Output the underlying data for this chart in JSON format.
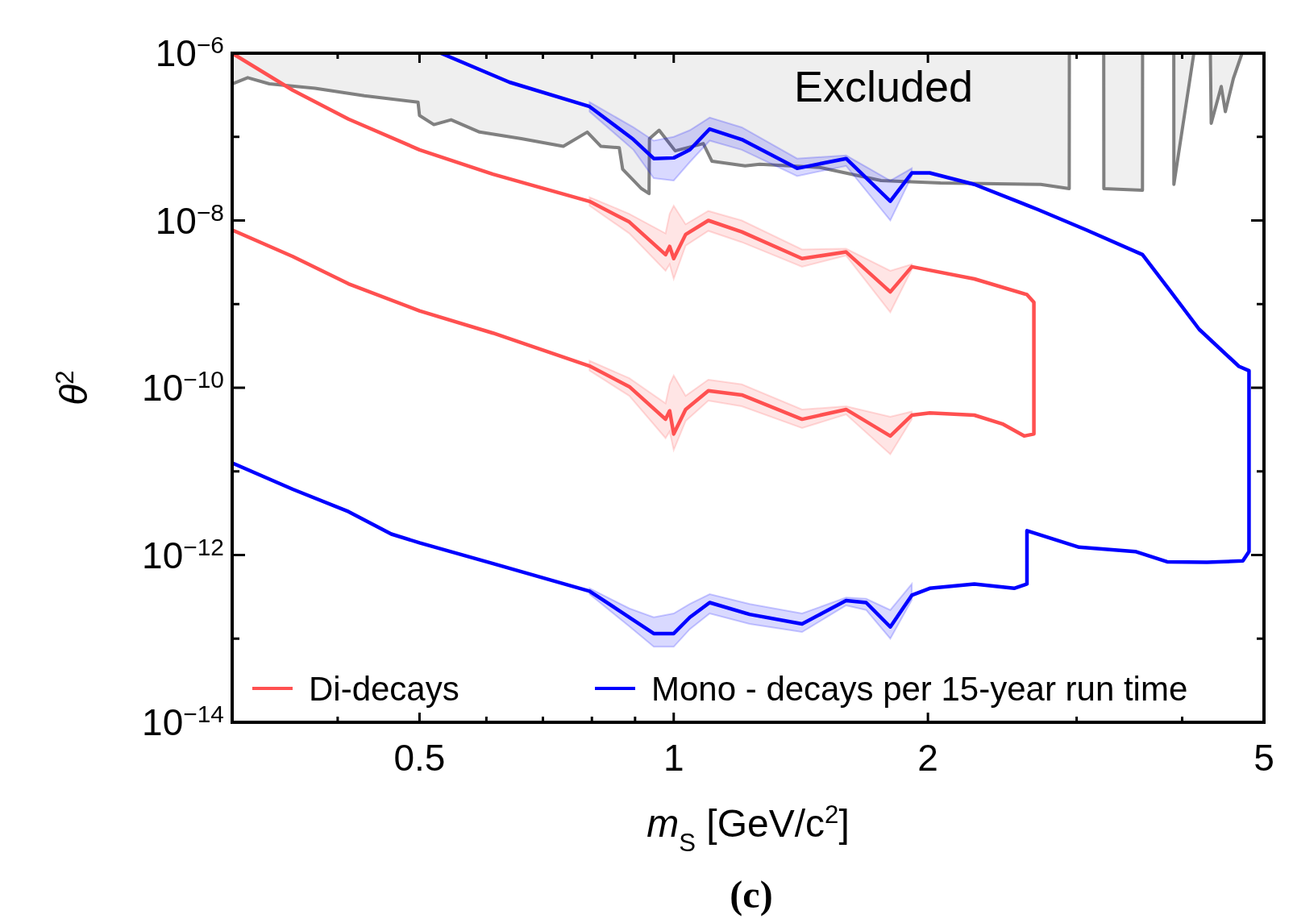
{
  "chart_data": {
    "type": "line",
    "xlabel": "m$_{S}$ [GeV/c$^{2}$]",
    "ylabel": "θ$^{2}$",
    "log": "xy",
    "grid": false,
    "legend": "bottom",
    "xlim": [
      0.3,
      5
    ],
    "ylim": [
      1e-14,
      1e-06
    ],
    "xticks": [
      {
        "value": 0.3,
        "label": null
      },
      {
        "value": 0.4,
        "label": null
      },
      {
        "value": 0.5,
        "label": "0.5"
      },
      {
        "value": 0.6,
        "label": null
      },
      {
        "value": 0.7,
        "label": null
      },
      {
        "value": 0.8,
        "label": null
      },
      {
        "value": 0.9,
        "label": null
      },
      {
        "value": 1,
        "label": "1"
      },
      {
        "value": 2,
        "label": "2"
      },
      {
        "value": 3,
        "label": null
      },
      {
        "value": 4,
        "label": null
      },
      {
        "value": 5,
        "label": "5"
      }
    ],
    "yticks": [
      {
        "value": 1e-14,
        "label": "10$^{−14}$"
      },
      {
        "value": 1e-13,
        "label": null
      },
      {
        "value": 1e-12,
        "label": "10$^{−12}$"
      },
      {
        "value": 1e-11,
        "label": null
      },
      {
        "value": 1e-10,
        "label": "10$^{−10}$"
      },
      {
        "value": 1e-09,
        "label": null
      },
      {
        "value": 1e-08,
        "label": "10$^{−8}$"
      },
      {
        "value": 1e-07,
        "label": null
      },
      {
        "value": 1e-06,
        "label": "10$^{−6}$"
      }
    ],
    "annotations": [
      "Excluded",
      "(c)"
    ],
    "series": [
      {
        "color": "#808080",
        "x": [
          0.3,
          0.313,
          0.332,
          0.376,
          0.43,
          0.498,
          0.5,
          0.52,
          0.545,
          0.589,
          0.66,
          0.74,
          0.79,
          0.82,
          0.862,
          0.87,
          0.916,
          0.935,
          0.936,
          0.961,
          1.004,
          1.084,
          1.11,
          1.215,
          1.264,
          1.49,
          1.76,
          2.07,
          2.72,
          2.94,
          2.941,
          3.23,
          3.231,
          3.59,
          3.591,
          3.91,
          3.911,
          4.13,
          4.32,
          4.33,
          4.45,
          4.5,
          4.6,
          4.71
        ],
        "values": [
          4.3e-07,
          5.1e-07,
          4.3e-07,
          3.8e-07,
          3.1e-07,
          2.6e-07,
          1.8e-07,
          1.4e-07,
          1.6e-07,
          1.14e-07,
          9.5e-08,
          7.7e-08,
          1.14e-07,
          7.7e-08,
          7.4e-08,
          4.1e-08,
          2.4e-08,
          2.1e-08,
          9.5e-08,
          1.2e-07,
          6.8e-08,
          8.3e-08,
          5.1e-08,
          4.5e-08,
          4.7e-08,
          4.3e-08,
          3e-08,
          2.8e-08,
          2.7e-08,
          2.4e-08,
          1e-06,
          1e-06,
          2.4e-08,
          2.3e-08,
          1e-06,
          1e-06,
          2.7e-08,
          1e-06,
          1e-06,
          1.45e-07,
          4e-07,
          2e-07,
          5e-07,
          1e-06
        ]
      },
      {
        "name": "Di-decays",
        "color": "#ff5050",
        "x": [
          0.3,
          0.354,
          0.412,
          0.5,
          0.611,
          0.795,
          0.886,
          0.978,
          0.989,
          1.0,
          1.033,
          1.099,
          1.204,
          1.419,
          1.6,
          1.805,
          1.914,
          2.27,
          2.62,
          2.67,
          2.67,
          2.6,
          2.45,
          2.27,
          2.01,
          1.914,
          1.805,
          1.6,
          1.419,
          1.204,
          1.099,
          1.033,
          1.0,
          0.989,
          0.978,
          0.886,
          0.795,
          0.611,
          0.5,
          0.412,
          0.354,
          0.3
        ],
        "values": [
          1e-06,
          3.6e-07,
          1.63e-07,
          7e-08,
          3.57e-08,
          1.69e-08,
          9.6e-09,
          3.9e-09,
          4.9e-09,
          3.5e-09,
          6.8e-09,
          1e-08,
          7.3e-09,
          3.5e-09,
          4.2e-09,
          1.4e-09,
          2.8e-09,
          2e-09,
          1.3e-09,
          1.05e-09,
          2.8e-11,
          2.65e-11,
          3.7e-11,
          4.7e-11,
          5e-11,
          4.7e-11,
          2.65e-11,
          5.5e-11,
          4.2e-11,
          8.2e-11,
          9.2e-11,
          5.5e-11,
          2.8e-11,
          5.3e-11,
          4.2e-11,
          1.03e-10,
          1.82e-10,
          4.5e-10,
          8.3e-10,
          1.75e-09,
          3.7e-09,
          7.7e-09
        ],
        "lower": [
          null,
          null,
          null,
          null,
          null,
          1.5e-08,
          7e-09,
          2.5e-09,
          3e-09,
          2e-09,
          5e-09,
          7.5e-09,
          5.5e-09,
          2.8e-09,
          3.8e-09,
          8e-10,
          2.6e-09,
          null,
          null,
          null,
          null,
          null,
          null,
          null,
          null,
          4.2e-11,
          1.6e-11,
          4.8e-11,
          3.3e-11,
          6e-11,
          7e-11,
          4e-11,
          1.8e-11,
          3e-11,
          2.5e-11,
          8e-11,
          1.6e-10,
          null,
          null,
          null,
          null,
          null
        ],
        "upper": [
          null,
          null,
          null,
          null,
          null,
          1.9e-08,
          1.2e-08,
          7e-09,
          1.2e-08,
          1.5e-08,
          9e-09,
          1.3e-08,
          1e-08,
          4.5e-09,
          4.6e-09,
          2.5e-09,
          3e-09,
          null,
          null,
          null,
          null,
          null,
          null,
          null,
          null,
          5.2e-11,
          4.5e-11,
          6e-11,
          5.5e-11,
          1.1e-10,
          1.25e-10,
          8e-11,
          1.4e-10,
          1.1e-10,
          6.5e-11,
          1.3e-10,
          2.1e-10,
          null,
          null,
          null,
          null,
          null
        ]
      },
      {
        "name": "Mono - decays per 15-year run time",
        "color": "#0000ff",
        "x": [
          0.53,
          0.639,
          0.795,
          0.896,
          0.947,
          1.0,
          1.045,
          1.103,
          1.204,
          1.4,
          1.6,
          1.805,
          1.914,
          2.01,
          2.27,
          2.7,
          3.08,
          3.59,
          3.88,
          4.19,
          4.67,
          4.8,
          4.8,
          4.72,
          4.28,
          3.84,
          3.52,
          3.02,
          2.62,
          2.62,
          2.53,
          2.27,
          2.01,
          1.914,
          1.805,
          1.69,
          1.6,
          1.419,
          1.23,
          1.103,
          1.045,
          1.0,
          0.947,
          0.886,
          0.795,
          0.611,
          0.5,
          0.463,
          0.412,
          0.354,
          0.3
        ],
        "values": [
          1e-06,
          4.5e-07,
          2.3e-07,
          9.3e-08,
          5.5e-08,
          5.6e-08,
          7e-08,
          1.24e-07,
          9.3e-08,
          4.2e-08,
          5.5e-08,
          1.7e-08,
          3.7e-08,
          3.7e-08,
          2.7e-08,
          1.35e-08,
          7.7e-09,
          3.9e-09,
          1.4e-09,
          5e-10,
          1.8e-10,
          1.6e-10,
          1.1e-12,
          8.5e-13,
          8.2e-13,
          8.3e-13,
          1.1e-12,
          1.24e-12,
          1.95e-12,
          4.5e-13,
          4e-13,
          4.5e-13,
          4e-13,
          3.3e-13,
          1.38e-13,
          2.7e-13,
          2.85e-13,
          1.5e-13,
          1.95e-13,
          2.7e-13,
          1.8e-13,
          1.15e-13,
          1.15e-13,
          1.8e-13,
          3.7e-13,
          7.9e-13,
          1.4e-12,
          1.78e-12,
          3.3e-12,
          6.1e-12,
          1.26e-11
        ],
        "lower": [
          null,
          null,
          2e-07,
          7e-08,
          3.2e-08,
          3e-08,
          5e-08,
          9e-08,
          7e-08,
          3.4e-08,
          4.5e-08,
          1e-08,
          3.4e-08,
          null,
          null,
          null,
          null,
          null,
          null,
          null,
          null,
          null,
          null,
          null,
          null,
          null,
          null,
          null,
          null,
          null,
          null,
          null,
          null,
          2.9e-13,
          1e-13,
          2.2e-13,
          2.5e-13,
          1.2e-13,
          1.5e-13,
          2e-13,
          1.3e-13,
          8e-14,
          8e-14,
          1.4e-13,
          3.4e-13,
          null,
          null,
          null,
          null,
          null,
          null
        ],
        "upper": [
          null,
          null,
          2.6e-07,
          1.3e-07,
          9e-08,
          1e-07,
          1.2e-07,
          1.7e-07,
          1.3e-07,
          5.5e-08,
          6e-08,
          3e-08,
          4.2e-08,
          null,
          null,
          null,
          null,
          null,
          null,
          null,
          null,
          null,
          null,
          null,
          null,
          null,
          null,
          null,
          null,
          null,
          null,
          null,
          null,
          4.5e-13,
          2.2e-13,
          3e-13,
          3.1e-13,
          2e-13,
          2.6e-13,
          3.4e-13,
          2.6e-13,
          2e-13,
          1.8e-13,
          2.3e-13,
          4e-13,
          null,
          null,
          null,
          null,
          null,
          null
        ]
      }
    ]
  }
}
